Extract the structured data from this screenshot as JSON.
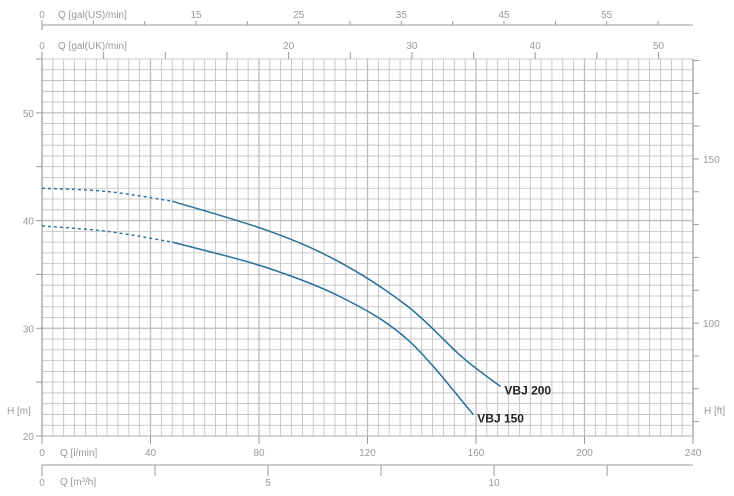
{
  "chart_data": {
    "type": "line",
    "xlabel": "Q [l/min]",
    "ylabel": "H [m]",
    "xlim": [
      0,
      240
    ],
    "ylim": [
      20,
      55
    ],
    "x_ticks": [
      0,
      40,
      80,
      120,
      160,
      200,
      240
    ],
    "y_ticks": [
      20,
      30,
      40,
      50
    ],
    "grid": true,
    "secondary_axes": {
      "top_us": {
        "label": "Q [gal(US)/min]",
        "tick_labels": [
          0,
          15,
          25,
          35,
          45,
          55
        ],
        "factor_l_per_unit": 3.785
      },
      "top_uk": {
        "label": "Q [gal(UK)/min]",
        "tick_labels": [
          0,
          20,
          30,
          40,
          50
        ],
        "factor_l_per_unit": 4.546
      },
      "bottom_m3h": {
        "label": "Q [m³/h]",
        "tick_labels": [
          0,
          5,
          10
        ],
        "factor_l_per_unit": 16.667
      },
      "right_ft": {
        "label": "H [ft]",
        "tick_labels": [
          100,
          150
        ],
        "factor_m_per_unit": 0.3048
      }
    },
    "colors": {
      "curve": "#2a6f9b",
      "grid": "#bdbdbd",
      "axis": "#999999"
    },
    "series": [
      {
        "name": "VBJ 200",
        "dashed_until_x": 48,
        "x": [
          0,
          24,
          48,
          84,
          110,
          135,
          155,
          169
        ],
        "y": [
          43.0,
          42.7,
          41.8,
          39.0,
          36.1,
          32.0,
          27.3,
          24.6
        ]
      },
      {
        "name": "VBJ 150",
        "dashed_until_x": 48,
        "x": [
          0,
          24,
          48,
          82,
          111,
          135,
          159
        ],
        "y": [
          39.5,
          39.0,
          38.0,
          35.7,
          32.8,
          28.9,
          22.0
        ]
      }
    ]
  }
}
